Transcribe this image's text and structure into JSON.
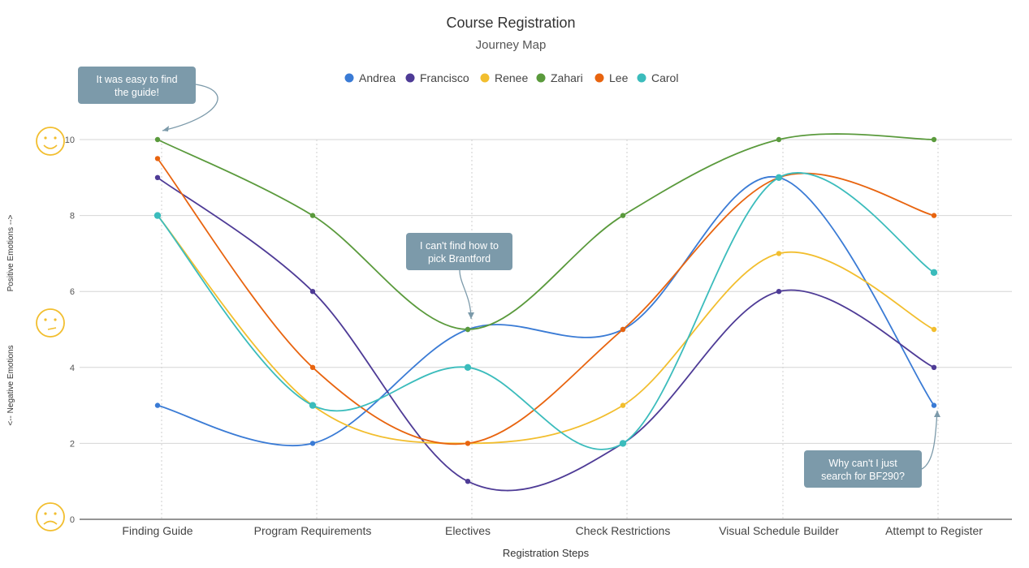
{
  "chart_data": {
    "type": "line",
    "title": "Course Registration",
    "subtitle": "Journey Map",
    "xlabel": "Registration Steps",
    "ylabel_positive": "Positive Emotions -->",
    "ylabel_negative": "<-- Negative Emotions",
    "categories": [
      "Finding Guide",
      "Program Requirements",
      "Electives",
      "Check Restrictions",
      "Visual Schedule Builder",
      "Attempt to Register"
    ],
    "yticks": [
      "0",
      "2",
      "4",
      "6",
      "8",
      "10"
    ],
    "ylim": [
      0,
      10
    ],
    "grid": true,
    "legend_position": "top",
    "series": [
      {
        "name": "Andrea",
        "color": "#3a7bd5",
        "values": [
          3,
          2,
          5,
          5,
          9,
          3
        ]
      },
      {
        "name": "Francisco",
        "color": "#4e3b96",
        "values": [
          9,
          6,
          1,
          2,
          6,
          4
        ]
      },
      {
        "name": "Renee",
        "color": "#f2be2e",
        "values": [
          8,
          3,
          2,
          3,
          7,
          5
        ]
      },
      {
        "name": "Zahari",
        "color": "#5a9a3c",
        "values": [
          10,
          8,
          5,
          8,
          10,
          10
        ]
      },
      {
        "name": "Lee",
        "color": "#e8640f",
        "values": [
          9.5,
          4,
          2,
          5,
          9,
          8
        ]
      },
      {
        "name": "Carol",
        "color": "#3bbcbc",
        "values": [
          8,
          3,
          4,
          2,
          9,
          6.5
        ]
      }
    ],
    "annotations": [
      {
        "lines": [
          "It was easy to find",
          "the guide!"
        ],
        "target_category": "Finding Guide",
        "target_value": 10
      },
      {
        "lines": [
          "I can't find how to",
          "pick Brantford"
        ],
        "target_category": "Electives",
        "target_value": 5
      },
      {
        "lines": [
          "Why can't I just",
          "search for BF290?"
        ],
        "target_category": "Attempt to Register",
        "target_value": 3
      }
    ],
    "emotion_icons": [
      "happy-face-icon",
      "neutral-face-icon",
      "sad-face-icon"
    ],
    "icon_color": "#f2be2e",
    "callout_color": "#7c9aaa"
  }
}
